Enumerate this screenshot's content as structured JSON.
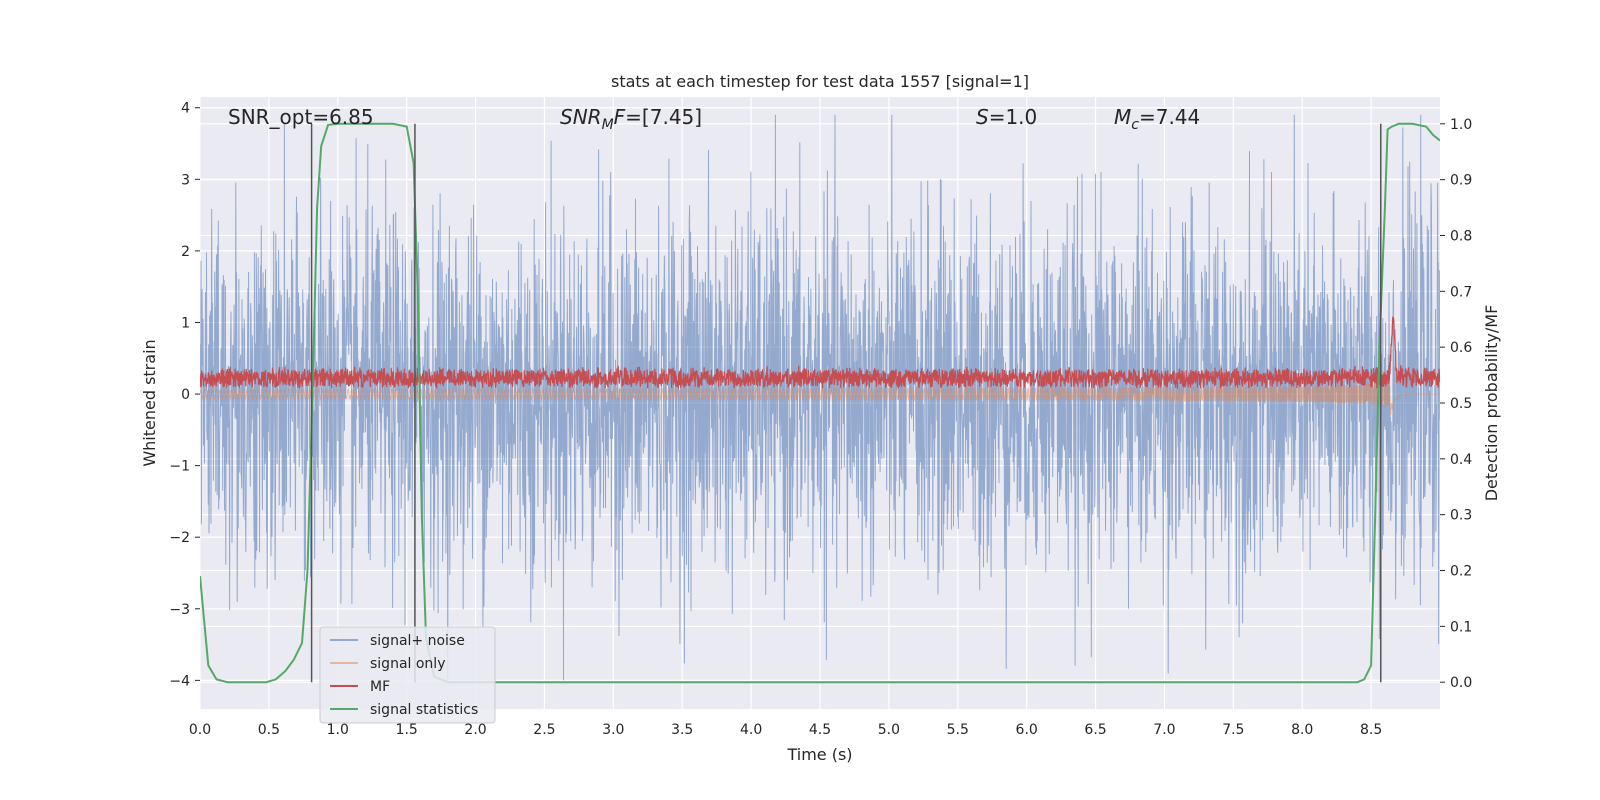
{
  "chart_data": {
    "type": "line",
    "title": "stats at each timestep for test data 1557 [signal=1]",
    "xlabel": "Time (s)",
    "ylabel": "Whitened strain",
    "y2label": "Detection probability/MF",
    "xlim": [
      0.0,
      9.0
    ],
    "ylim": [
      -4.4,
      4.15
    ],
    "y2lim": [
      -0.048,
      1.048
    ],
    "xticks": [
      "0.0",
      "0.5",
      "1.0",
      "1.5",
      "2.0",
      "2.5",
      "3.0",
      "3.5",
      "4.0",
      "4.5",
      "5.0",
      "5.5",
      "6.0",
      "6.5",
      "7.0",
      "7.5",
      "8.0",
      "8.5"
    ],
    "yticks": [
      "−4",
      "−3",
      "−2",
      "−1",
      "0",
      "1",
      "2",
      "3",
      "4"
    ],
    "y2ticks": [
      "0.0",
      "0.1",
      "0.2",
      "0.3",
      "0.4",
      "0.5",
      "0.6",
      "0.7",
      "0.8",
      "0.9",
      "1.0"
    ],
    "grid": true,
    "legend_position": "lower-left",
    "annotations": {
      "snr_opt": "SNR_opt=6.85",
      "snr_mf_italic": "SNR",
      "snr_mf_sub": "M",
      "snr_mf_italic2": "F",
      "snr_mf_value": "=[7.45]",
      "s_italic": "S",
      "s_value": "=1.0",
      "mc_italic": "M",
      "mc_sub": "c",
      "mc_value": "=7.44"
    },
    "vertical_markers": [
      0.81,
      1.56,
      8.57
    ],
    "series": [
      {
        "name": "signal+ noise",
        "color": "#4c72b0",
        "opacity": 0.55,
        "axis": "left",
        "kind": "noise",
        "envelope_std": 1.0,
        "x_range": [
          0.0,
          9.0
        ]
      },
      {
        "name": "signal only",
        "color": "#dd8452",
        "opacity": 0.5,
        "axis": "left",
        "kind": "chirp",
        "merger_time": 8.65,
        "peak_amplitude": 0.6,
        "x_range": [
          0.0,
          9.0
        ]
      },
      {
        "name": "MF",
        "color": "#c44e52",
        "opacity": 1.0,
        "axis": "left",
        "kind": "mf",
        "baseline": 0.2,
        "peak_time": 8.66,
        "peak_value": 1.0,
        "x_range": [
          0.0,
          9.0
        ]
      },
      {
        "name": "signal statistics",
        "color": "#55a868",
        "opacity": 1.0,
        "axis": "right",
        "kind": "line",
        "x": [
          0.0,
          0.06,
          0.12,
          0.2,
          0.3,
          0.4,
          0.48,
          0.55,
          0.62,
          0.68,
          0.74,
          0.78,
          0.82,
          0.85,
          0.88,
          0.93,
          1.0,
          1.1,
          1.2,
          1.3,
          1.4,
          1.5,
          1.55,
          1.58,
          1.61,
          1.64,
          1.7,
          1.8,
          2.0,
          3.0,
          4.0,
          5.0,
          6.0,
          7.0,
          8.0,
          8.4,
          8.45,
          8.5,
          8.53,
          8.56,
          8.6,
          8.62,
          8.65,
          8.7,
          8.8,
          8.9,
          8.95,
          9.0
        ],
        "y": [
          0.19,
          0.03,
          0.005,
          0.0,
          0.0,
          0.0,
          0.0,
          0.005,
          0.02,
          0.04,
          0.07,
          0.2,
          0.55,
          0.85,
          0.96,
          0.998,
          1.0,
          1.0,
          1.0,
          1.0,
          1.0,
          0.995,
          0.93,
          0.7,
          0.3,
          0.08,
          0.01,
          0.0,
          0.0,
          0.0,
          0.0,
          0.0,
          0.0,
          0.0,
          0.0,
          0.0,
          0.005,
          0.03,
          0.3,
          0.6,
          0.85,
          0.99,
          0.995,
          1.0,
          1.0,
          0.995,
          0.98,
          0.97
        ]
      }
    ]
  }
}
